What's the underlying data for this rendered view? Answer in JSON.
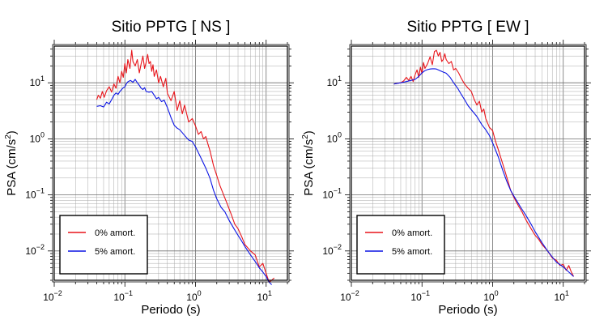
{
  "chart_data": [
    {
      "type": "line",
      "title": "Sitio PPTG [ NS ]",
      "xlabel": "Periodo (s)",
      "ylabel_main": "PSA (cm/s",
      "ylabel_sup": "2",
      "ylabel_end": ")",
      "xscale": "log",
      "yscale": "log",
      "xlim": [
        0.01,
        20
      ],
      "ylim": [
        0.003,
        45
      ],
      "grid": true,
      "legend_position": "bottom-left",
      "x_ticks": [
        {
          "base": "10",
          "exp": "−2"
        },
        {
          "base": "10",
          "exp": "−1"
        },
        {
          "base": "10",
          "exp": "0"
        },
        {
          "base": "10",
          "exp": "1"
        }
      ],
      "y_ticks": [
        {
          "base": "10",
          "exp": "−2"
        },
        {
          "base": "10",
          "exp": "−1"
        },
        {
          "base": "10",
          "exp": "0"
        },
        {
          "base": "10",
          "exp": "1"
        }
      ],
      "series": [
        {
          "name": "0% amort.",
          "color": "#e8141a",
          "x": [
            0.04,
            0.042,
            0.045,
            0.048,
            0.051,
            0.055,
            0.06,
            0.065,
            0.07,
            0.075,
            0.08,
            0.085,
            0.09,
            0.095,
            0.1,
            0.105,
            0.11,
            0.118,
            0.125,
            0.13,
            0.14,
            0.15,
            0.16,
            0.17,
            0.18,
            0.19,
            0.2,
            0.21,
            0.22,
            0.23,
            0.24,
            0.25,
            0.26,
            0.28,
            0.3,
            0.32,
            0.35,
            0.38,
            0.4,
            0.45,
            0.5,
            0.55,
            0.6,
            0.65,
            0.7,
            0.8,
            0.9,
            1.0,
            1.1,
            1.2,
            1.3,
            1.4,
            1.5,
            1.6,
            1.7,
            1.8,
            2.0,
            2.2,
            2.5,
            2.8,
            3.2,
            3.6,
            4.0,
            4.5,
            5.0,
            6.0,
            7.0,
            8.0,
            9.0,
            10.0,
            11.0,
            12.0,
            13.0
          ],
          "y": [
            5.0,
            6.0,
            5.3,
            7.0,
            5.5,
            7.2,
            8.5,
            6.8,
            9.5,
            8.0,
            13.0,
            10.0,
            16.0,
            12.5,
            22.0,
            15.0,
            26.0,
            18.0,
            38.0,
            24.0,
            20.0,
            26.0,
            15.0,
            22.0,
            30.0,
            18.0,
            23.0,
            32.0,
            22.0,
            24.0,
            16.0,
            21.0,
            13.0,
            17.0,
            10.0,
            13.0,
            8.5,
            12.0,
            6.5,
            4.8,
            7.0,
            3.2,
            4.8,
            2.8,
            4.0,
            2.0,
            2.3,
            1.7,
            1.2,
            1.35,
            1.0,
            1.1,
            0.8,
            0.62,
            0.45,
            0.33,
            0.22,
            0.15,
            0.1,
            0.07,
            0.045,
            0.03,
            0.025,
            0.018,
            0.013,
            0.01,
            0.0085,
            0.0052,
            0.006,
            0.004,
            0.0028,
            0.003,
            0.0033
          ]
        },
        {
          "name": "5% amort.",
          "color": "#0b14e4",
          "x": [
            0.04,
            0.045,
            0.05,
            0.055,
            0.06,
            0.065,
            0.07,
            0.075,
            0.08,
            0.085,
            0.09,
            0.095,
            0.1,
            0.105,
            0.11,
            0.12,
            0.13,
            0.14,
            0.15,
            0.16,
            0.17,
            0.18,
            0.19,
            0.2,
            0.22,
            0.24,
            0.26,
            0.28,
            0.3,
            0.33,
            0.36,
            0.4,
            0.45,
            0.5,
            0.55,
            0.6,
            0.7,
            0.8,
            0.9,
            1.0,
            1.2,
            1.4,
            1.6,
            1.8,
            2.0,
            2.3,
            2.6,
            3.0,
            3.5,
            4.0,
            4.5,
            5.0,
            6.0,
            7.0,
            8.0,
            9.0,
            10.0,
            11.0,
            12.0
          ],
          "y": [
            3.8,
            3.9,
            3.7,
            4.5,
            4.2,
            5.0,
            6.0,
            6.6,
            6.2,
            7.0,
            7.6,
            8.2,
            8.4,
            9.6,
            10.4,
            11.0,
            10.2,
            11.5,
            10.0,
            9.0,
            8.0,
            7.6,
            8.2,
            7.0,
            6.8,
            7.0,
            6.0,
            5.2,
            5.5,
            4.6,
            4.9,
            3.6,
            2.4,
            1.75,
            1.55,
            1.45,
            1.15,
            0.95,
            0.9,
            0.72,
            0.45,
            0.3,
            0.2,
            0.12,
            0.085,
            0.06,
            0.05,
            0.035,
            0.025,
            0.019,
            0.015,
            0.012,
            0.0085,
            0.0065,
            0.005,
            0.0042,
            0.0035,
            0.0028,
            0.0025
          ]
        }
      ]
    },
    {
      "type": "line",
      "title": "Sitio PPTG [ EW ]",
      "xlabel": "Periodo (s)",
      "ylabel_main": "PSA (cm/s",
      "ylabel_sup": "2",
      "ylabel_end": ")",
      "xscale": "log",
      "yscale": "log",
      "xlim": [
        0.01,
        20
      ],
      "ylim": [
        0.003,
        45
      ],
      "grid": true,
      "legend_position": "bottom-left",
      "x_ticks": [
        {
          "base": "10",
          "exp": "−2"
        },
        {
          "base": "10",
          "exp": "−1"
        },
        {
          "base": "10",
          "exp": "0"
        },
        {
          "base": "10",
          "exp": "1"
        }
      ],
      "y_ticks": [
        {
          "base": "10",
          "exp": "−2"
        },
        {
          "base": "10",
          "exp": "−1"
        },
        {
          "base": "10",
          "exp": "0"
        },
        {
          "base": "10",
          "exp": "1"
        }
      ],
      "series": [
        {
          "name": "0% amort.",
          "color": "#e8141a",
          "x": [
            0.04,
            0.045,
            0.05,
            0.055,
            0.06,
            0.065,
            0.07,
            0.075,
            0.08,
            0.085,
            0.09,
            0.095,
            0.1,
            0.105,
            0.11,
            0.12,
            0.13,
            0.14,
            0.15,
            0.16,
            0.17,
            0.18,
            0.19,
            0.2,
            0.21,
            0.22,
            0.24,
            0.26,
            0.28,
            0.3,
            0.33,
            0.36,
            0.4,
            0.45,
            0.5,
            0.55,
            0.6,
            0.65,
            0.7,
            0.75,
            0.8,
            0.9,
            1.0,
            1.1,
            1.2,
            1.4,
            1.6,
            1.8,
            2.0,
            2.3,
            2.6,
            3.0,
            3.5,
            4.0,
            4.5,
            5.0,
            6.0,
            7.0,
            8.0,
            9.0,
            10.0,
            11.0,
            12.0,
            13.0,
            14.0
          ],
          "y": [
            9.5,
            9.8,
            10.0,
            10.8,
            12.5,
            11.0,
            13.0,
            10.5,
            14.0,
            17.0,
            12.5,
            19.0,
            14.5,
            23.0,
            18.0,
            22.0,
            29.0,
            21.0,
            36.0,
            38.0,
            30.0,
            35.0,
            24.0,
            26.0,
            33.0,
            26.0,
            22.0,
            24.0,
            17.0,
            18.0,
            15.0,
            12.0,
            9.5,
            8.0,
            7.0,
            5.0,
            4.0,
            4.7,
            3.0,
            3.4,
            2.3,
            1.6,
            1.4,
            0.9,
            0.65,
            0.35,
            0.2,
            0.12,
            0.09,
            0.065,
            0.05,
            0.035,
            0.025,
            0.019,
            0.016,
            0.013,
            0.01,
            0.0075,
            0.0068,
            0.0055,
            0.0058,
            0.0045,
            0.0055,
            0.0042,
            0.0035
          ]
        },
        {
          "name": "5% amort.",
          "color": "#0b14e4",
          "x": [
            0.04,
            0.05,
            0.06,
            0.07,
            0.08,
            0.09,
            0.1,
            0.11,
            0.12,
            0.13,
            0.14,
            0.15,
            0.16,
            0.18,
            0.2,
            0.22,
            0.25,
            0.28,
            0.32,
            0.36,
            0.4,
            0.45,
            0.5,
            0.6,
            0.7,
            0.8,
            0.9,
            1.0,
            1.2,
            1.4,
            1.6,
            1.8,
            2.0,
            2.5,
            3.0,
            3.5,
            4.0,
            5.0,
            6.0,
            7.0,
            8.0,
            10.0,
            12.0,
            14.0
          ],
          "y": [
            9.5,
            10.0,
            10.5,
            11.0,
            11.5,
            13.0,
            15.0,
            16.5,
            17.2,
            17.6,
            17.8,
            17.8,
            17.6,
            16.5,
            15.5,
            14.8,
            12.5,
            10.0,
            8.0,
            6.2,
            5.0,
            3.9,
            3.3,
            2.5,
            1.8,
            1.45,
            1.15,
            0.85,
            0.48,
            0.27,
            0.17,
            0.12,
            0.095,
            0.06,
            0.042,
            0.03,
            0.022,
            0.014,
            0.01,
            0.0078,
            0.0063,
            0.0052,
            0.0042,
            0.0035
          ]
        }
      ]
    }
  ]
}
